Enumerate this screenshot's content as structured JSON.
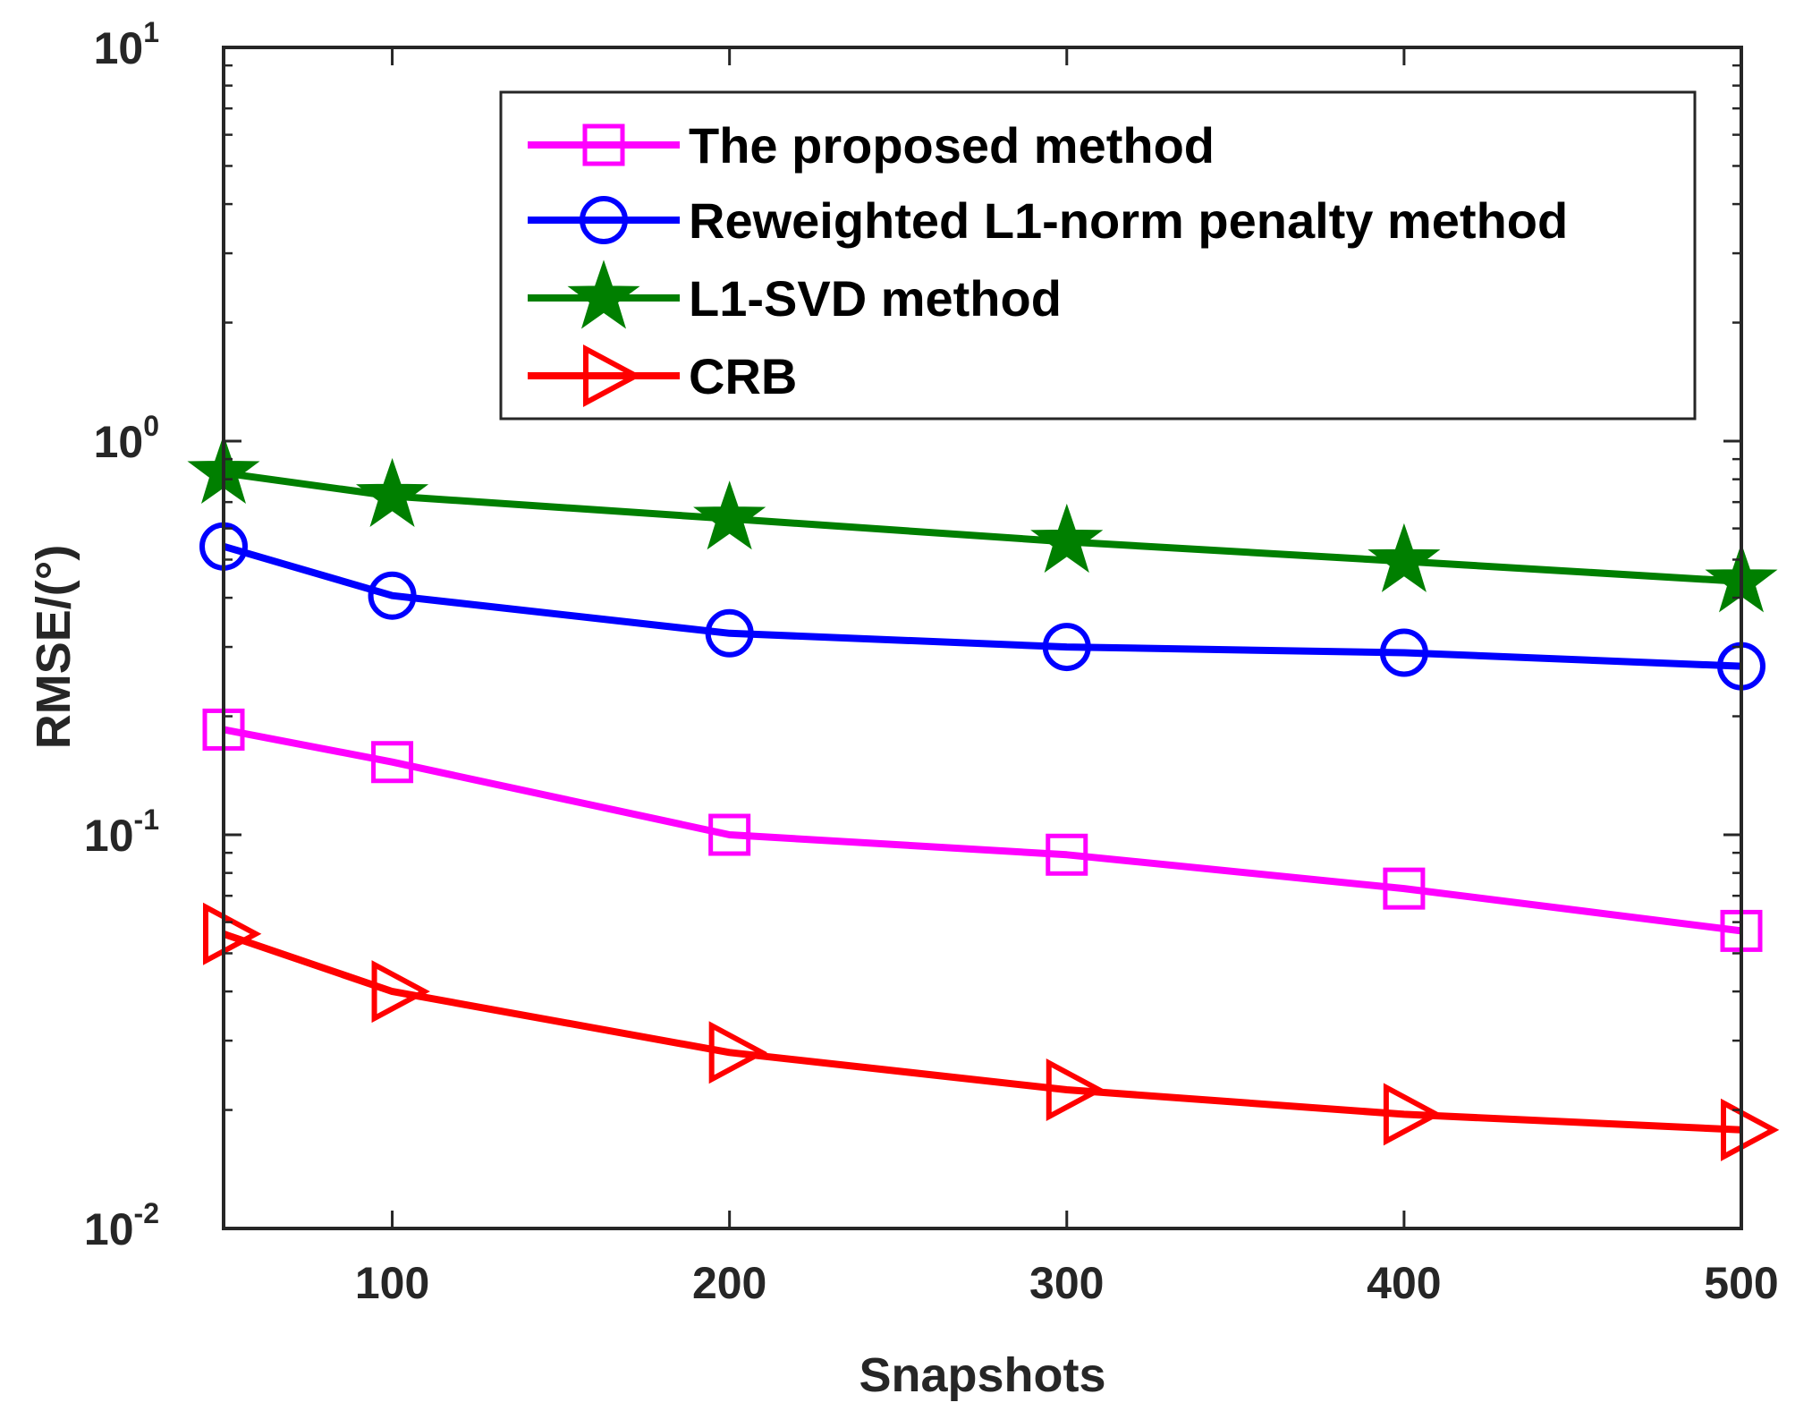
{
  "chart_data": {
    "type": "line",
    "title": "",
    "xlabel": "Snapshots",
    "ylabel": "RMSE/(°)",
    "xlim": [
      50,
      500
    ],
    "ylim": [
      0.01,
      10
    ],
    "yscale": "log",
    "x": [
      50,
      100,
      200,
      300,
      400,
      500
    ],
    "xticks": [
      "100",
      "200",
      "300",
      "400",
      "500"
    ],
    "yticks": [
      {
        "base": "10",
        "exp": "-2"
      },
      {
        "base": "10",
        "exp": "-1"
      },
      {
        "base": "10",
        "exp": "0"
      },
      {
        "base": "10",
        "exp": "1"
      }
    ],
    "legend_position": "top-right",
    "series": [
      {
        "name": "The proposed method",
        "marker": "square",
        "color": "#ff00ff",
        "values": [
          0.185,
          0.153,
          0.1,
          0.089,
          0.073,
          0.057
        ]
      },
      {
        "name": "Reweighted L1-norm penalty method",
        "marker": "circle",
        "color": "#0000ff",
        "values": [
          0.54,
          0.405,
          0.325,
          0.3,
          0.29,
          0.268
        ]
      },
      {
        "name": "L1-SVD method",
        "marker": "star",
        "color": "#007f00",
        "values": [
          0.83,
          0.725,
          0.635,
          0.555,
          0.495,
          0.44
        ]
      },
      {
        "name": "CRB",
        "marker": "triangle-right",
        "color": "#ff0000",
        "values": [
          0.056,
          0.04,
          0.028,
          0.0225,
          0.0195,
          0.0178
        ]
      }
    ]
  }
}
